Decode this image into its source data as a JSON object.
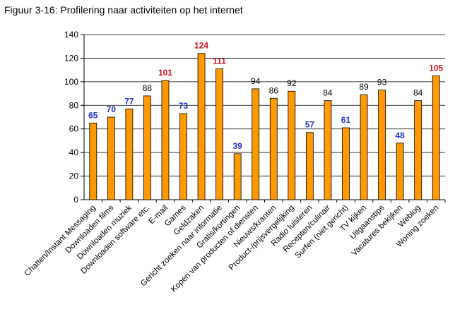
{
  "caption": "Figuur 3-16: Profilering naar activiteiten op het internet",
  "chart_data": {
    "type": "bar",
    "title": "",
    "xlabel": "",
    "ylabel": "",
    "ylim": [
      0,
      140
    ],
    "yticks": [
      0,
      20,
      40,
      60,
      80,
      100,
      120,
      140
    ],
    "grid": true,
    "categories": [
      "Chatten/Instant Messaging",
      "Downloaden films",
      "Downloaden muziek",
      "Downloaden software etc.",
      "E-mail",
      "Games",
      "Geldzaken",
      "Gericht zoeken naar informatie",
      "Gratis/kortingen",
      "Kopen van producten of diensten",
      "Nieuws/kranten",
      "Product-/prijsvergelijking",
      "Radio luisteren",
      "Recepten/culinair",
      "Surfen (niet gericht)",
      "TV kijken",
      "Uitgaanstips",
      "Vacatures bekijken",
      "Weblog",
      "Woning zoeken"
    ],
    "values": [
      65,
      70,
      77,
      88,
      101,
      73,
      124,
      111,
      39,
      94,
      86,
      92,
      57,
      84,
      61,
      89,
      93,
      48,
      84,
      105
    ],
    "label_colors": [
      "#2233cc",
      "#2233cc",
      "#2233cc",
      "#000000",
      "#cc1122",
      "#2233cc",
      "#cc1122",
      "#cc1122",
      "#2233cc",
      "#000000",
      "#000000",
      "#000000",
      "#2233cc",
      "#000000",
      "#2233cc",
      "#000000",
      "#000000",
      "#2233cc",
      "#000000",
      "#cc1122"
    ],
    "bar_color": "#ff9900",
    "bar_stroke": "#000000"
  }
}
